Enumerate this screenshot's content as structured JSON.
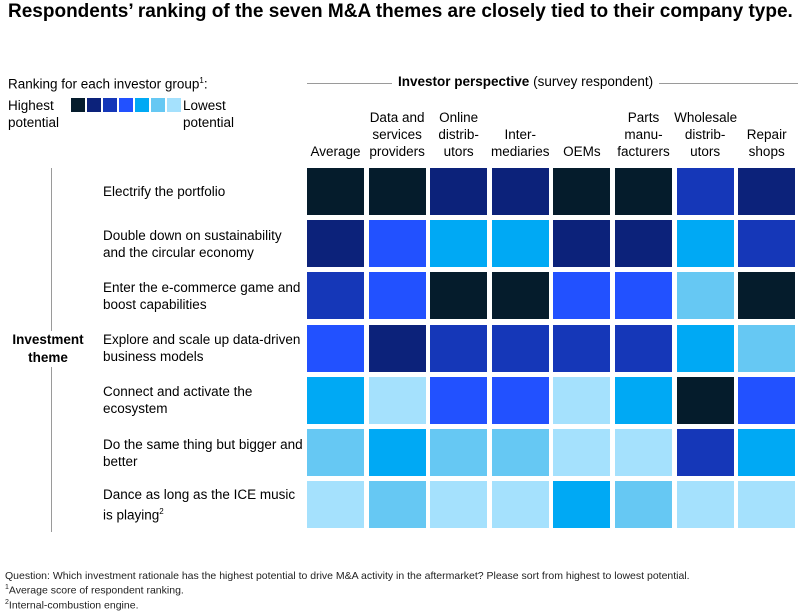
{
  "title": "Respondents’ ranking of the seven M&A themes are closely tied to their company type.",
  "legend": {
    "title": "Ranking for each investor group",
    "title_note": "1",
    "high_label": "Highest potential",
    "low_label": "Lowest potential",
    "colors": [
      "#051c2c",
      "#0c227a",
      "#1537b8",
      "#2251ff",
      "#00a9f4",
      "#66c8f3",
      "#a5e1fd"
    ]
  },
  "perspective": {
    "bold": "Investor perspective",
    "normal": "(survey respondent)"
  },
  "theme_label": "Investment theme",
  "chart_data": {
    "type": "heatmap",
    "title": "Respondents’ ranking of the seven M&A themes are closely tied to their company type.",
    "value_meaning": "rank, 1 = highest potential, 7 = lowest potential",
    "columns": [
      "Average",
      "Data and services providers",
      "Online distrib- utors",
      "Inter- mediaries",
      "OEMs",
      "Parts manu- facturers",
      "Wholesale distrib- utors",
      "Repair shops"
    ],
    "rows": [
      {
        "label": "Electrify the portfolio",
        "note": "",
        "values": [
          1,
          1,
          2,
          2,
          1,
          1,
          3,
          2
        ]
      },
      {
        "label": "Double down on sustainability and the circular economy",
        "note": "",
        "values": [
          2,
          4,
          5,
          5,
          2,
          2,
          5,
          3
        ]
      },
      {
        "label": "Enter the e-commerce game and boost capabilities",
        "note": "",
        "values": [
          3,
          4,
          1,
          1,
          4,
          4,
          6,
          1
        ]
      },
      {
        "label": "Explore and scale up data-driven business models",
        "note": "",
        "values": [
          4,
          2,
          3,
          3,
          3,
          3,
          5,
          6
        ]
      },
      {
        "label": "Connect and activate the ecosystem",
        "note": "",
        "values": [
          5,
          7,
          4,
          4,
          7,
          5,
          1,
          4
        ]
      },
      {
        "label": "Do the same thing but bigger and better",
        "note": "",
        "values": [
          6,
          5,
          6,
          6,
          7,
          7,
          3,
          5
        ]
      },
      {
        "label": "Dance as long as the ICE music is playing",
        "note": "2",
        "values": [
          7,
          6,
          7,
          7,
          5,
          6,
          7,
          7
        ]
      }
    ]
  },
  "notes": {
    "question": "Question: Which investment rationale has the highest potential to drive M&A activity in the aftermarket? Please sort from highest to lowest potential.",
    "note1_mark": "1",
    "note1": "Average score of respondent ranking.",
    "note2_mark": "2",
    "note2": "Internal-combustion engine."
  }
}
